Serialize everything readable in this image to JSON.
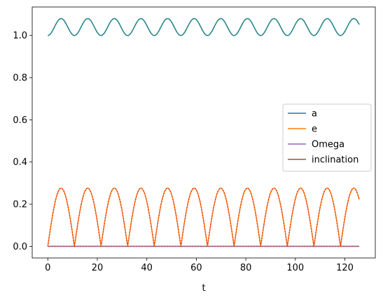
{
  "chart_data": {
    "type": "line",
    "xlabel": "t",
    "ylabel": "",
    "xlim": [
      -6.3,
      132.3
    ],
    "ylim": [
      -0.055,
      1.135
    ],
    "xticks": [
      0,
      20,
      40,
      60,
      80,
      100,
      120
    ],
    "yticks": [
      0.0,
      0.2,
      0.4,
      0.6,
      0.8,
      1.0
    ],
    "legend_position": "center-right",
    "t_range": [
      0,
      125.8
    ],
    "oscillation_period": 10.75,
    "series": [
      {
        "name": "a",
        "color": "#1f77b4",
        "shape": "cosine",
        "min": 1.0,
        "max": 1.08,
        "overlay_color": "#2ca02c",
        "overlay_style": "dotted"
      },
      {
        "name": "e",
        "color": "#ff7f0e",
        "shape": "arch",
        "min": 0.0,
        "max": 0.276,
        "overlay_color": "#d62728",
        "overlay_style": "dotted"
      },
      {
        "name": "Omega",
        "color": "#9467bd",
        "shape": "constant",
        "value": 0.0
      },
      {
        "name": "inclination",
        "color": "#8c564b",
        "shape": "constant",
        "value": 0.0,
        "overlay_color": "#e377c2",
        "overlay_style": "dotted"
      }
    ]
  }
}
